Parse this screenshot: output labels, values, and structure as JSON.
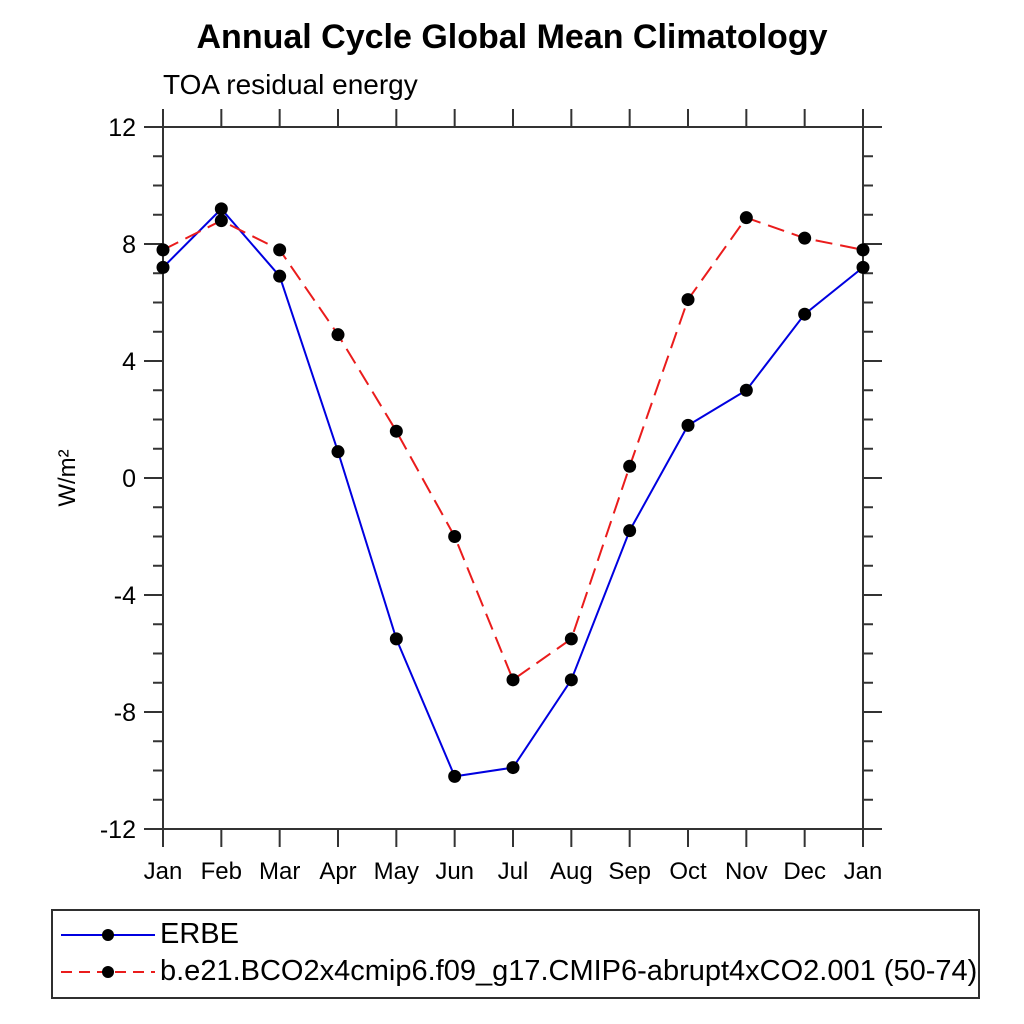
{
  "page": {
    "background": "#ffffff"
  },
  "chart_data": {
    "type": "line",
    "title": "Annual Cycle Global Mean Climatology",
    "subtitle": "TOA residual energy",
    "ylabel": "W/m²",
    "xlabel": "",
    "categories": [
      "Jan",
      "Feb",
      "Mar",
      "Apr",
      "May",
      "Jun",
      "Jul",
      "Aug",
      "Sep",
      "Oct",
      "Nov",
      "Dec",
      "Jan"
    ],
    "ylim": [
      -12,
      12
    ],
    "y_major_ticks": [
      -12,
      -8,
      -4,
      0,
      4,
      8,
      12
    ],
    "y_minor_step": 1,
    "grid": "off",
    "legend_position": "bottom-left",
    "axis_color": "#333333",
    "series": [
      {
        "name": "ERBE",
        "color": "#0000e0",
        "line_style": "solid",
        "marker": "circle",
        "marker_color": "#000000",
        "values": [
          7.2,
          9.2,
          6.9,
          0.9,
          -5.5,
          -10.2,
          -9.9,
          -6.9,
          -1.8,
          1.8,
          3.0,
          5.6,
          7.2
        ]
      },
      {
        "name": "b.e21.BCO2x4cmip6.f09_g17.CMIP6-abrupt4xCO2.001 (50-74)",
        "color": "#ea1c1c",
        "line_style": "dashed",
        "marker": "circle",
        "marker_color": "#000000",
        "values": [
          7.8,
          8.8,
          7.8,
          4.9,
          1.6,
          -2.0,
          -6.9,
          -5.5,
          0.4,
          6.1,
          8.9,
          8.2,
          7.8
        ]
      }
    ]
  }
}
